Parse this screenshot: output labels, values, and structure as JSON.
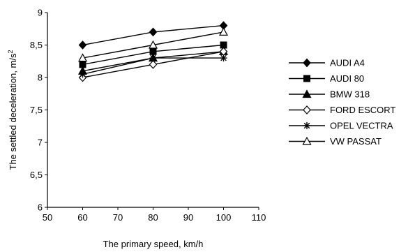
{
  "chart_data": {
    "type": "line",
    "title": "",
    "xlabel": "The primary speed, km/h",
    "ylabel": "The settled deceleration, m/s",
    "ylabel_sup": "2",
    "xlim": [
      50,
      110
    ],
    "ylim": [
      6,
      9
    ],
    "xticks": [
      50,
      60,
      70,
      80,
      90,
      100,
      110
    ],
    "yticks": [
      6,
      6.5,
      7,
      7.5,
      8,
      8.5,
      9
    ],
    "xtick_labels": [
      "50",
      "60",
      "70",
      "80",
      "90",
      "100",
      "110"
    ],
    "ytick_labels": [
      "6",
      "6,5",
      "7",
      "7,5",
      "8",
      "8,5",
      "9"
    ],
    "grid": false,
    "legend_position": "right",
    "x": [
      60,
      80,
      100
    ],
    "series": [
      {
        "name": "AUDI A4",
        "marker": "diamond-filled",
        "values": [
          8.5,
          8.7,
          8.8
        ]
      },
      {
        "name": "AUDI 80",
        "marker": "square-filled",
        "values": [
          8.2,
          8.4,
          8.5
        ]
      },
      {
        "name": "BMW 318",
        "marker": "triangle-filled",
        "values": [
          8.1,
          8.3,
          8.4
        ]
      },
      {
        "name": "FORD ESCORT",
        "marker": "diamond-open",
        "values": [
          8.0,
          8.2,
          8.4
        ]
      },
      {
        "name": "OPEL VECTRA",
        "marker": "star",
        "values": [
          8.05,
          8.3,
          8.3
        ]
      },
      {
        "name": "VW PASSAT",
        "marker": "triangle-open",
        "values": [
          8.3,
          8.5,
          8.7
        ]
      }
    ]
  }
}
